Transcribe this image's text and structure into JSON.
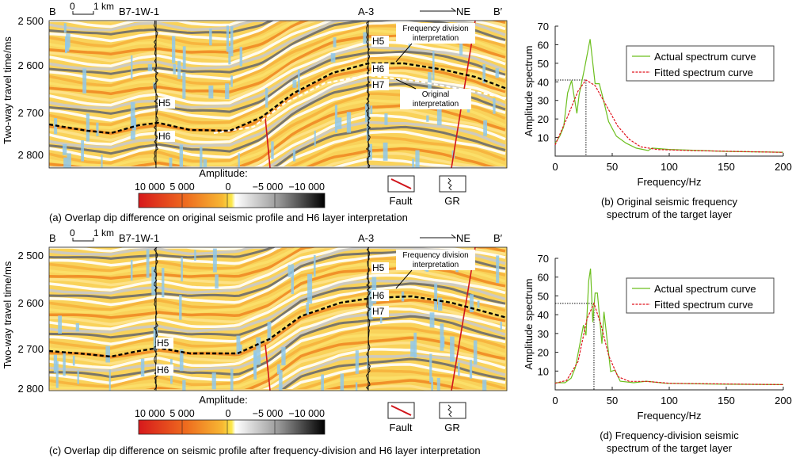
{
  "panels": [
    {
      "id": "a",
      "caption": "(a) Overlap dip difference on original seismic profile and H6 layer interpretation",
      "left_label": "B",
      "right_label": "B′",
      "scale_zero": "0",
      "scale_km": "1 km",
      "well_1": "B7-1W-1",
      "well_2": "A-3",
      "direction": "NE",
      "y_axis_label": "Two-way travel time/ms",
      "y_ticks": [
        "2 500",
        "2 600",
        "2 700",
        "2 800"
      ],
      "horizons_well1": [
        "H5",
        "H6"
      ],
      "horizons_well2": [
        "H5",
        "H6",
        "H7"
      ],
      "annotation_1": [
        "Frequency division",
        "interpretation"
      ],
      "annotation_2": [
        "Original",
        "interpretation"
      ],
      "colorbar_title": "Amplitude:",
      "colorbar_ticks": [
        "10 000",
        "5 000",
        "0",
        "−5 000",
        "−10 000"
      ],
      "legend_fault": "Fault",
      "legend_gr": "GR"
    },
    {
      "id": "c",
      "caption": "(c) Overlap dip difference on seismic profile after frequency-division and H6 layer interpretation",
      "left_label": "B",
      "right_label": "B′",
      "scale_zero": "0",
      "scale_km": "1 km",
      "well_1": "B7-1W-1",
      "well_2": "A-3",
      "direction": "NE",
      "y_axis_label": "Two-way travel time/ms",
      "y_ticks": [
        "2 500",
        "2 600",
        "2 700",
        "2 800"
      ],
      "horizons_well1": [
        "H5",
        "H6"
      ],
      "horizons_well2": [
        "H5",
        "H6",
        "H7"
      ],
      "annotation_1": [
        "Frequency division",
        "interpretation"
      ],
      "colorbar_title": "Amplitude:",
      "colorbar_ticks": [
        "10 000",
        "5 000",
        "0",
        "−5 000",
        "−10 000"
      ],
      "legend_fault": "Fault",
      "legend_gr": "GR"
    }
  ],
  "colors": {
    "positive": "#d7191c",
    "mid": "#f7a21b",
    "zero": "#fbe84a",
    "negative": "#000000",
    "fault": "#d0151b",
    "actual": "#6cbf1e",
    "fitted": "#e0141e",
    "overlay": "#8fc8ea"
  },
  "chart_data": [
    {
      "type": "line",
      "caption": [
        "(b) Original seismic frequency",
        "spectrum of the target layer"
      ],
      "xlabel": "Frequency/Hz",
      "ylabel": "Amplitude spectrum",
      "xlim": [
        0,
        200
      ],
      "ylim": [
        0,
        70
      ],
      "xticks": [
        0,
        50,
        100,
        150,
        200
      ],
      "yticks": [
        10,
        20,
        30,
        40,
        50,
        60,
        70
      ],
      "legend_position": "top-right",
      "grid": false,
      "dominant_frequency": 27,
      "peak_amplitude": 41,
      "series": [
        {
          "name": "Actual spectrum curve",
          "style": "solid",
          "x": [
            0,
            4,
            7.4,
            10.9,
            14.4,
            19,
            21,
            26,
            30.6,
            35,
            38.7,
            42,
            46.8,
            53.7,
            62,
            71,
            81.5,
            85,
            100,
            150,
            200
          ],
          "y": [
            7,
            10.7,
            15.7,
            34,
            40.7,
            23,
            33,
            48,
            63,
            39,
            39,
            31,
            18.6,
            10.7,
            7,
            4.3,
            3,
            4.3,
            3.6,
            2.5,
            2.1
          ]
        },
        {
          "name": "Fitted spectrum curve",
          "style": "dashed",
          "x": [
            0,
            10,
            20,
            27,
            35,
            45,
            55,
            65,
            75,
            90,
            120,
            200
          ],
          "y": [
            6,
            20,
            35,
            41,
            38,
            27,
            16,
            9,
            5,
            3.5,
            3,
            2
          ]
        }
      ]
    },
    {
      "type": "line",
      "caption": [
        "(d) Frequency-division seismic",
        "spectrum of the target layer"
      ],
      "xlabel": "Frequency/Hz",
      "ylabel": "Amplitude spectrum",
      "xlim": [
        0,
        200
      ],
      "ylim": [
        0,
        70
      ],
      "xticks": [
        0,
        50,
        100,
        150,
        200
      ],
      "yticks": [
        10,
        20,
        30,
        40,
        50,
        60,
        70
      ],
      "legend_position": "top-right",
      "grid": false,
      "dominant_frequency": 34,
      "peak_amplitude": 46,
      "series": [
        {
          "name": "Actual spectrum curve",
          "style": "solid",
          "x": [
            0,
            8.6,
            14,
            17.8,
            24.8,
            27,
            29.4,
            31,
            33,
            35,
            37,
            41,
            42.8,
            48.6,
            52.5,
            57,
            68.8,
            80,
            96.5,
            150,
            200
          ],
          "y": [
            3.8,
            3.8,
            6.3,
            12,
            34.5,
            29,
            58,
            64.5,
            36,
            51.5,
            51.5,
            24.6,
            41.5,
            9.8,
            10.5,
            4.6,
            3.8,
            4.6,
            3.5,
            3,
            2.8
          ]
        },
        {
          "name": "Fitted spectrum curve",
          "style": "dashed",
          "x": [
            0,
            10,
            20,
            28,
            34,
            40,
            47,
            55,
            65,
            80,
            100,
            200
          ],
          "y": [
            3.5,
            5,
            15,
            38,
            46,
            35,
            18,
            7,
            4.5,
            4.5,
            3.5,
            2.8
          ]
        }
      ]
    }
  ]
}
